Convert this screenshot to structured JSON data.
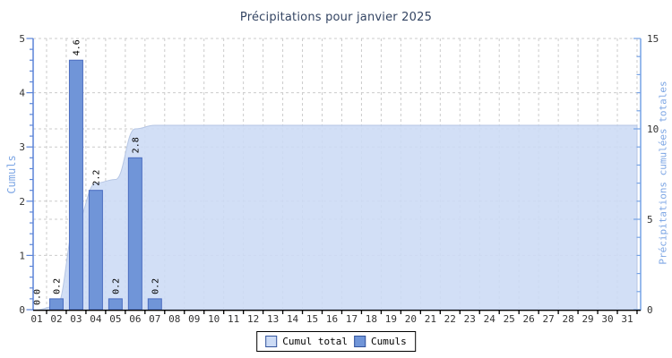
{
  "chart_data": {
    "type": "composite-bar-area",
    "title": "Précipitations pour janvier 2025",
    "title_color": "#344563",
    "x_categories": [
      "01",
      "02",
      "03",
      "04",
      "05",
      "06",
      "07",
      "08",
      "09",
      "10",
      "11",
      "12",
      "13",
      "14",
      "15",
      "16",
      "17",
      "18",
      "19",
      "20",
      "21",
      "22",
      "23",
      "24",
      "25",
      "26",
      "27",
      "28",
      "29",
      "30",
      "31"
    ],
    "series": [
      {
        "name": "Cumul total",
        "type": "area",
        "axis": "right",
        "fill": "#ccdbf5",
        "edge": "#b6c6e4",
        "values": [
          0.0,
          0.2,
          4.8,
          7.0,
          7.2,
          10.0,
          10.2,
          10.2,
          10.2,
          10.2,
          10.2,
          10.2,
          10.2,
          10.2,
          10.2,
          10.2,
          10.2,
          10.2,
          10.2,
          10.2,
          10.2,
          10.2,
          10.2,
          10.2,
          10.2,
          10.2,
          10.2,
          10.2,
          10.2,
          10.2,
          10.2
        ]
      },
      {
        "name": "Cumuls",
        "type": "bar",
        "axis": "left",
        "fill": "#7095d8",
        "edge": "#4a6cc0",
        "values": [
          0.0,
          0.2,
          4.6,
          2.2,
          0.2,
          2.8,
          0.2,
          0,
          0,
          0,
          0,
          0,
          0,
          0,
          0,
          0,
          0,
          0,
          0,
          0,
          0,
          0,
          0,
          0,
          0,
          0,
          0,
          0,
          0,
          0,
          0
        ],
        "value_labels": [
          "0.0",
          "0.2",
          "4.6",
          "2.2",
          "0.2",
          "2.8",
          "0.2"
        ]
      }
    ],
    "y_left": {
      "label": "Cumuls",
      "min": 0,
      "max": 5,
      "major_step": 1,
      "minor_step": 0.2,
      "tick_labels": [
        "0",
        "1",
        "2",
        "3",
        "4",
        "5"
      ],
      "axis_color": "#5b84d8",
      "tick_label_color": "#333333",
      "title_color": "#7da6e4"
    },
    "y_right": {
      "label": "Précipitations cumulées totales",
      "min": 0,
      "max": 15,
      "major_step": 5,
      "minor_step": 1,
      "tick_labels": [
        "0",
        "5",
        "10",
        "15"
      ],
      "axis_color": "#76a3e6",
      "tick_label_color": "#333333",
      "title_color": "#7da6e4"
    },
    "x_axis": {
      "color": "#000000",
      "tick_label_color": "#333333"
    },
    "grid": {
      "color": "#cbcbcb",
      "dash": "3 3"
    },
    "legend": [
      {
        "label": "Cumul total",
        "color": "#ccdbf5",
        "border": "#33549c"
      },
      {
        "label": "Cumuls",
        "color": "#7095d8",
        "border": "#33549c"
      }
    ]
  }
}
